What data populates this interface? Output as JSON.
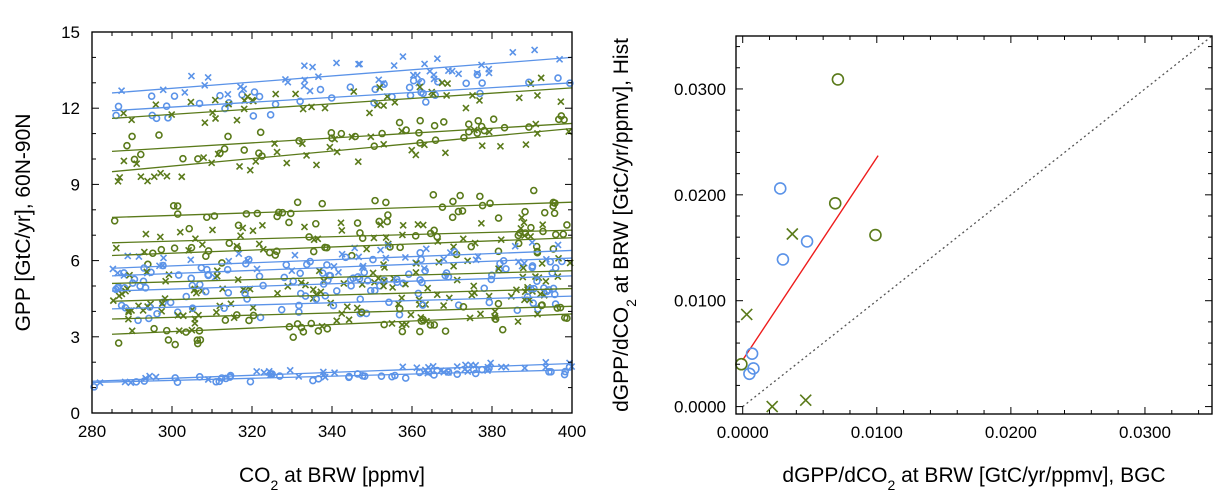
{
  "colors": {
    "blue": "#5b93e8",
    "green": "#5a7a1a",
    "red": "#ee1c1c",
    "identity": "#555555"
  },
  "chart_data": [
    {
      "type": "scatter",
      "xlabel_main": "CO",
      "xlabel_sub": "2",
      "xlabel_rest": " at BRW [ppmv]",
      "ylabel": "GPP [GtC/yr], 60N-90N",
      "xlim": [
        280,
        400
      ],
      "ylim": [
        0,
        15
      ],
      "xticks": [
        "280",
        "300",
        "320",
        "340",
        "360",
        "380",
        "400"
      ],
      "yticks": [
        "0",
        "3",
        "6",
        "9",
        "12",
        "15"
      ],
      "markers": "circle = one group of models, cross = the other",
      "trend_lines": [
        {
          "color": "blue",
          "x": [
            285,
            400
          ],
          "y": [
            12.6,
            14.0
          ]
        },
        {
          "color": "blue",
          "x": [
            285,
            400
          ],
          "y": [
            11.9,
            13.0
          ]
        },
        {
          "color": "green",
          "x": [
            285,
            400
          ],
          "y": [
            11.6,
            12.8
          ]
        },
        {
          "color": "green",
          "x": [
            285,
            400
          ],
          "y": [
            10.3,
            11.4
          ]
        },
        {
          "color": "green",
          "x": [
            285,
            400
          ],
          "y": [
            9.5,
            11.2
          ]
        },
        {
          "color": "green",
          "x": [
            285,
            400
          ],
          "y": [
            7.7,
            8.3
          ]
        },
        {
          "color": "green",
          "x": [
            285,
            400
          ],
          "y": [
            6.7,
            7.2
          ]
        },
        {
          "color": "green",
          "x": [
            285,
            400
          ],
          "y": [
            6.2,
            6.9
          ]
        },
        {
          "color": "blue",
          "x": [
            285,
            400
          ],
          "y": [
            5.7,
            6.4
          ]
        },
        {
          "color": "blue",
          "x": [
            285,
            400
          ],
          "y": [
            5.4,
            6.1
          ]
        },
        {
          "color": "green",
          "x": [
            285,
            400
          ],
          "y": [
            5.1,
            5.6
          ]
        },
        {
          "color": "blue",
          "x": [
            285,
            400
          ],
          "y": [
            4.8,
            5.4
          ]
        },
        {
          "color": "green",
          "x": [
            285,
            400
          ],
          "y": [
            4.4,
            4.9
          ]
        },
        {
          "color": "blue",
          "x": [
            285,
            400
          ],
          "y": [
            4.1,
            4.6
          ]
        },
        {
          "color": "green",
          "x": [
            285,
            400
          ],
          "y": [
            3.7,
            4.2
          ]
        },
        {
          "color": "green",
          "x": [
            285,
            400
          ],
          "y": [
            3.1,
            3.9
          ]
        },
        {
          "color": "blue",
          "x": [
            280,
            400
          ],
          "y": [
            1.25,
            1.95
          ]
        },
        {
          "color": "blue",
          "x": [
            280,
            400
          ],
          "y": [
            1.2,
            1.7
          ]
        }
      ]
    },
    {
      "type": "scatter",
      "xlabel_main": "dGPP/dCO",
      "xlabel_sub": "2",
      "xlabel_rest": " at BRW [GtC/yr/ppmv], BGC",
      "ylabel_main": "dGPP/dCO",
      "ylabel_sub": "2",
      "ylabel_rest": " at BRW [GtC/yr/ppmv], Hist",
      "xlim": [
        -0.0005,
        0.035
      ],
      "ylim": [
        -0.0007,
        0.035
      ],
      "xticks": [
        {
          "value": 0.0,
          "label": "0.0000"
        },
        {
          "value": 0.01,
          "label": "0.0100"
        },
        {
          "value": 0.02,
          "label": "0.0200"
        },
        {
          "value": 0.03,
          "label": "0.0300"
        }
      ],
      "yticks": [
        {
          "value": 0.0,
          "label": "0.0000"
        },
        {
          "value": 0.01,
          "label": "0.0100"
        },
        {
          "value": 0.02,
          "label": "0.0200"
        },
        {
          "value": 0.03,
          "label": "0.0300"
        }
      ],
      "points": [
        {
          "x": 0.0071,
          "y": 0.0309,
          "color": "green",
          "marker": "circle"
        },
        {
          "x": 0.0028,
          "y": 0.0206,
          "color": "blue",
          "marker": "circle"
        },
        {
          "x": 0.0069,
          "y": 0.0192,
          "color": "green",
          "marker": "circle"
        },
        {
          "x": 0.0037,
          "y": 0.0163,
          "color": "green",
          "marker": "cross"
        },
        {
          "x": 0.0099,
          "y": 0.0162,
          "color": "green",
          "marker": "circle"
        },
        {
          "x": 0.0048,
          "y": 0.0156,
          "color": "blue",
          "marker": "circle"
        },
        {
          "x": 0.003,
          "y": 0.0139,
          "color": "blue",
          "marker": "circle"
        },
        {
          "x": 0.0003,
          "y": 0.0087,
          "color": "green",
          "marker": "cross"
        },
        {
          "x": 0.0007,
          "y": 0.005,
          "color": "blue",
          "marker": "circle"
        },
        {
          "x": -0.0001,
          "y": 0.004,
          "color": "green",
          "marker": "circle"
        },
        {
          "x": 0.0008,
          "y": 0.0036,
          "color": "blue",
          "marker": "circle"
        },
        {
          "x": 0.0005,
          "y": 0.0031,
          "color": "blue",
          "marker": "circle"
        },
        {
          "x": 0.0047,
          "y": 0.0006,
          "color": "green",
          "marker": "cross"
        },
        {
          "x": 0.0022,
          "y": 0.0,
          "color": "green",
          "marker": "cross"
        }
      ],
      "regression_line": {
        "x": [
          0.0,
          0.0101
        ],
        "y": [
          0.0044,
          0.0237
        ]
      },
      "identity_line": {
        "x": [
          0.0,
          0.035
        ],
        "y": [
          0.0,
          0.035
        ]
      }
    }
  ]
}
